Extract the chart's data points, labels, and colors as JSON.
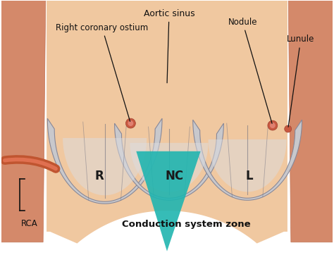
{
  "bg_color": "#ffffff",
  "aorta_outer_color": "#d4896a",
  "aorta_mid_color": "#e0a080",
  "aorta_inner_color": "#ecca9a",
  "aorta_bg_color": "#f0c8a0",
  "aorta_wall_edge": "#c07050",
  "cusp_fill": "#c8c8cc",
  "cusp_dark": "#888898",
  "cusp_light": "#dcdce0",
  "cusp_fold": "#707080",
  "teal_color": "#20b5b0",
  "rca_color": "#c05530",
  "nodule_color": "#c85840",
  "ann_color": "#111111",
  "label_R": "R",
  "label_NC": "NC",
  "label_L": "L",
  "label_aortic_sinus": "Aortic sinus",
  "label_right_coronary": "Right coronary ostium",
  "label_nodule": "Nodule",
  "label_lunule": "Lunule",
  "label_csz": "Conduction system zone",
  "label_rca": "RCA",
  "figsize": [
    4.74,
    3.72
  ],
  "dpi": 100
}
